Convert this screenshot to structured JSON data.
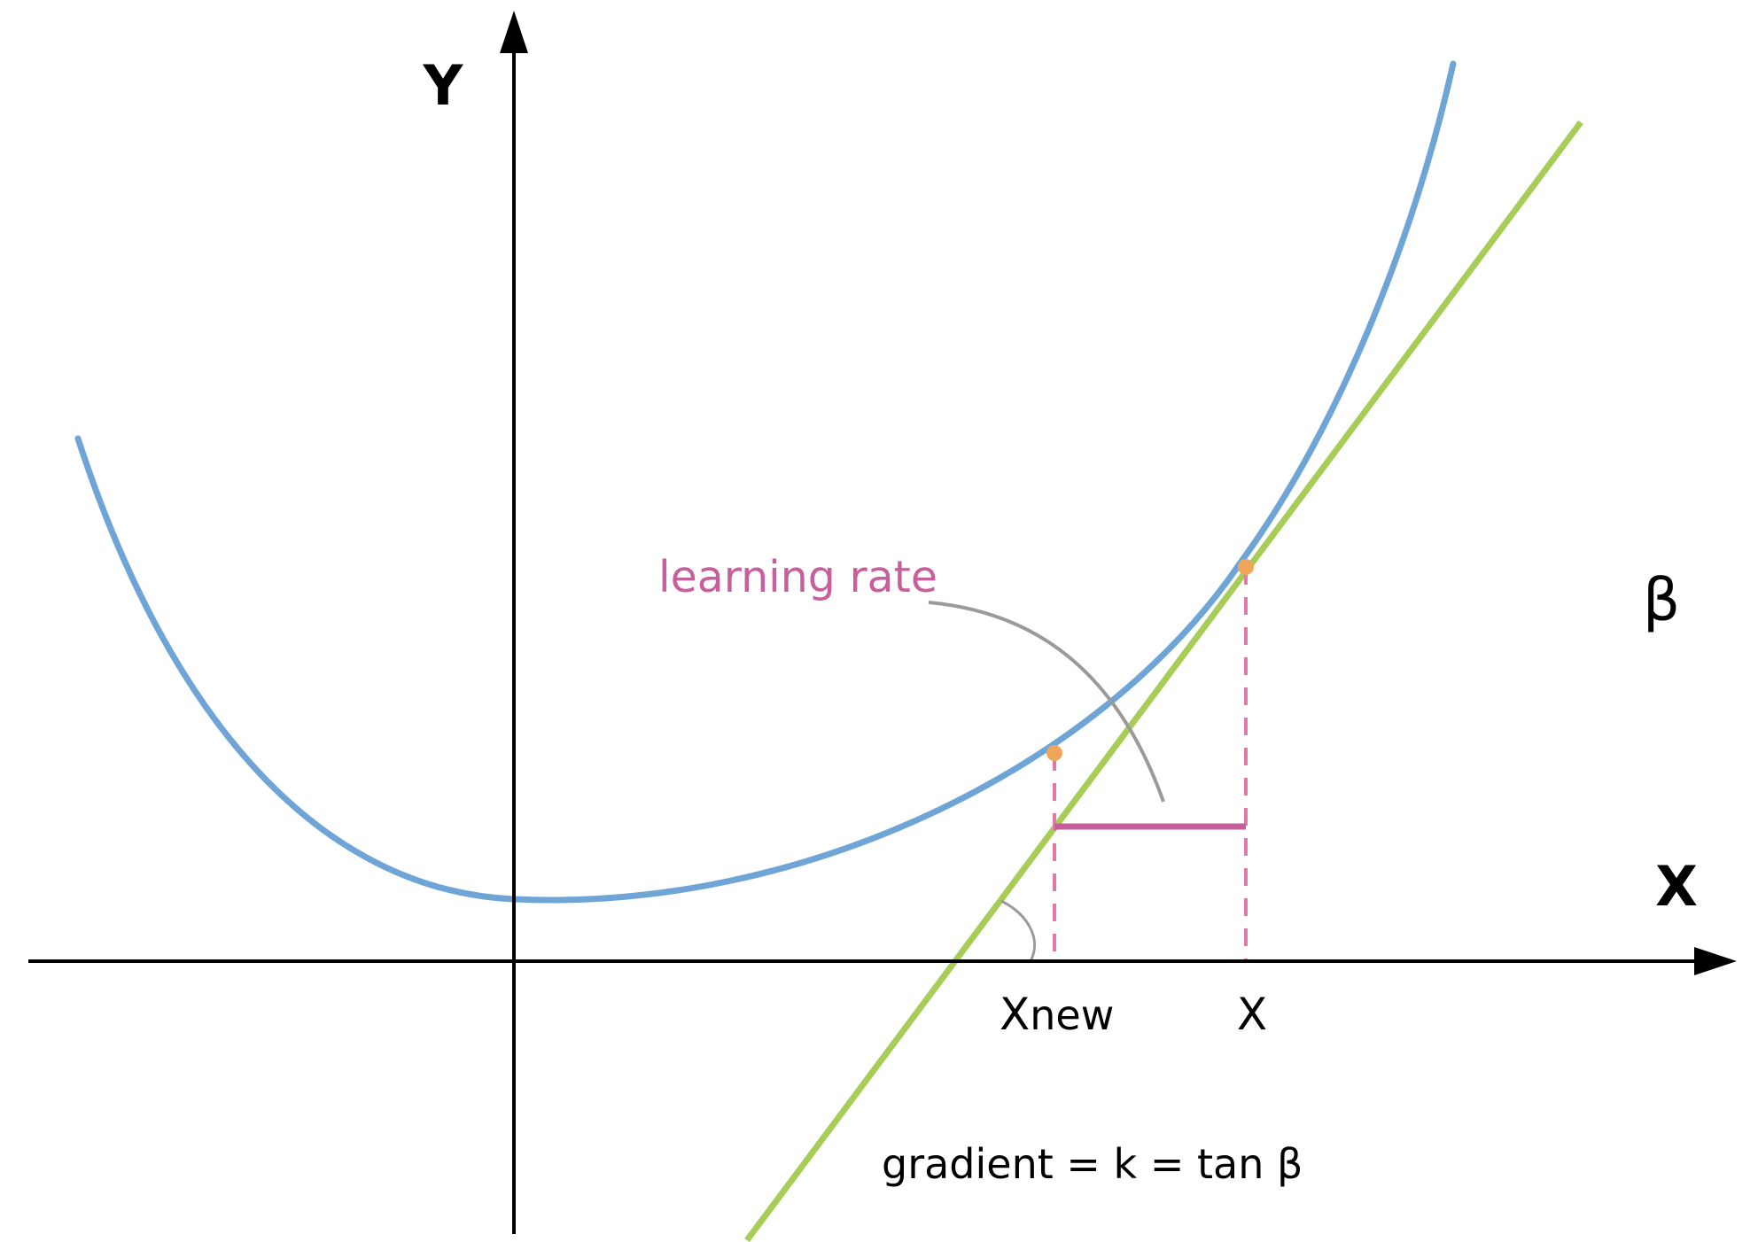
{
  "axes": {
    "y_label": "Y",
    "x_label": "X"
  },
  "labels": {
    "x_new_main": "X",
    "x_new_sub": "new",
    "x_current": "X",
    "angle": "β",
    "learning_rate": "learning rate",
    "formula": "gradient = k = tan β"
  },
  "colors": {
    "curve": "#6fa5d6",
    "tangent": "#a8cd57",
    "learning_rate": "#c75f9c",
    "guide": "#e27aa8",
    "point": "#f0a65a",
    "leader": "#9a9a9a",
    "axis": "#000000"
  }
}
